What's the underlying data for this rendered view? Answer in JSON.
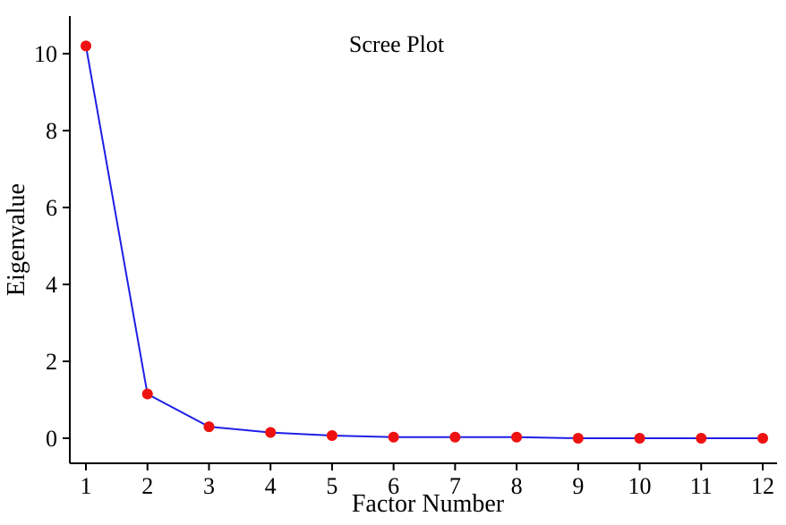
{
  "chart_data": {
    "type": "line",
    "title": "Scree Plot",
    "xlabel": "Factor Number",
    "ylabel": "Eigenvalue",
    "x": [
      1,
      2,
      3,
      4,
      5,
      6,
      7,
      8,
      9,
      10,
      11,
      12
    ],
    "series": [
      {
        "values": [
          10.2,
          1.15,
          0.3,
          0.15,
          0.07,
          0.03,
          0.03,
          0.03,
          0.0,
          0.0,
          0.0,
          0.0
        ]
      }
    ],
    "xlim": [
      1,
      12
    ],
    "ylim": [
      0,
      10
    ],
    "xticks": [
      "1",
      "2",
      "3",
      "4",
      "5",
      "6",
      "7",
      "8",
      "9",
      "10",
      "11",
      "12"
    ],
    "yticks": [
      "0",
      "2",
      "4",
      "6",
      "8",
      "10"
    ],
    "grid": false,
    "colors": {
      "line": "#1f1fe6",
      "marker": "#ee1111",
      "axis": "#000000"
    }
  }
}
